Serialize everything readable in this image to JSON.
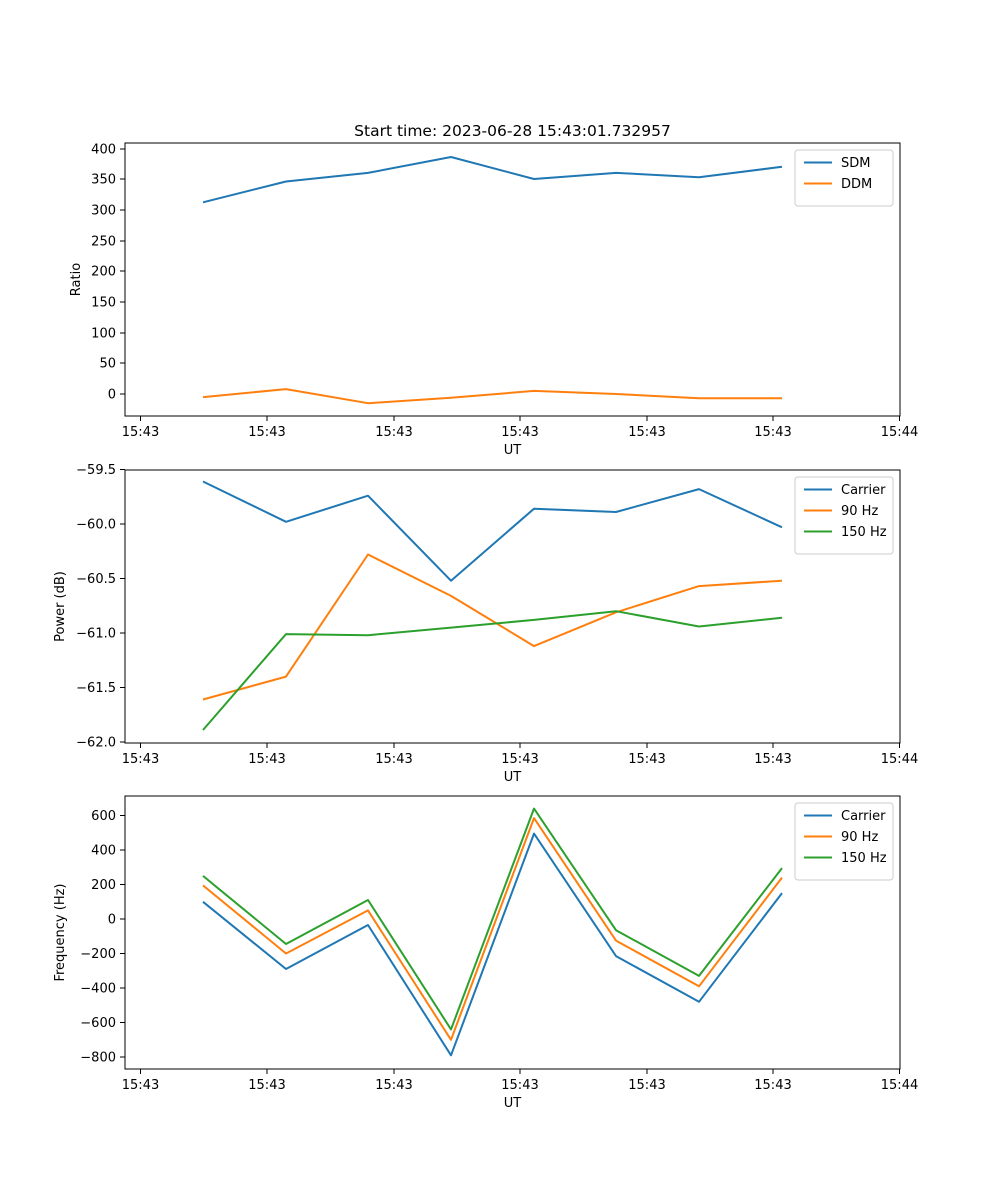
{
  "figure_title": "Start time: 2023-06-28 15:43:01.732957",
  "chart_data": [
    {
      "type": "line",
      "xlabel": "UT",
      "ylabel": "Ratio",
      "x": [
        1,
        2,
        3,
        4,
        5,
        6,
        7,
        8
      ],
      "x_ticks": [
        "15:43",
        "15:43",
        "15:43",
        "15:43",
        "15:43",
        "15:43",
        "15:44"
      ],
      "y_ticks": [
        "0",
        "50",
        "100",
        "150",
        "200",
        "250",
        "300",
        "350",
        "400"
      ],
      "ylim": [
        -36,
        405
      ],
      "grid": false,
      "legend_position": "top-right",
      "series": [
        {
          "name": "SDM",
          "color": "#1f77b4",
          "values": [
            313,
            347,
            361,
            387,
            351,
            361,
            354,
            371
          ]
        },
        {
          "name": "DDM",
          "color": "#ff7f0e",
          "values": [
            -5,
            8,
            -15,
            -6,
            5,
            0,
            -7,
            -7
          ]
        }
      ]
    },
    {
      "type": "line",
      "xlabel": "UT",
      "ylabel": "Power (dB)",
      "x": [
        1,
        2,
        3,
        4,
        5,
        6,
        7,
        8
      ],
      "x_ticks": [
        "15:43",
        "15:43",
        "15:43",
        "15:43",
        "15:43",
        "15:43",
        "15:44"
      ],
      "y_ticks": [
        "−62.0",
        "−61.5",
        "−61.0",
        "−60.5",
        "−60.0",
        "−59.5"
      ],
      "ylim": [
        -62.0,
        -59.5
      ],
      "grid": false,
      "legend_position": "top-right",
      "series": [
        {
          "name": "Carrier",
          "color": "#1f77b4",
          "values": [
            -59.61,
            -59.98,
            -59.74,
            -60.52,
            -59.86,
            -59.89,
            -59.68,
            -60.03
          ]
        },
        {
          "name": "90 Hz",
          "color": "#ff7f0e",
          "values": [
            -61.61,
            -61.4,
            -60.28,
            -60.66,
            -61.12,
            -60.81,
            -60.57,
            -60.52
          ]
        },
        {
          "name": "150 Hz",
          "color": "#2ca02c",
          "values": [
            -61.89,
            -61.01,
            -61.02,
            -60.95,
            -60.88,
            -60.8,
            -60.94,
            -60.86
          ]
        }
      ]
    },
    {
      "type": "line",
      "xlabel": "UT",
      "ylabel": "Frequency (Hz)",
      "x": [
        1,
        2,
        3,
        4,
        5,
        6,
        7,
        8
      ],
      "x_ticks": [
        "15:43",
        "15:43",
        "15:43",
        "15:43",
        "15:43",
        "15:43",
        "15:44"
      ],
      "y_ticks": [
        "−800",
        "−600",
        "−400",
        "−200",
        "0",
        "200",
        "400",
        "600"
      ],
      "ylim": [
        -862,
        712
      ],
      "grid": false,
      "legend_position": "top-right",
      "series": [
        {
          "name": "Carrier",
          "color": "#1f77b4",
          "values": [
            100,
            -290,
            -35,
            -790,
            495,
            -215,
            -480,
            150
          ]
        },
        {
          "name": "90 Hz",
          "color": "#ff7f0e",
          "values": [
            195,
            -200,
            50,
            -700,
            585,
            -125,
            -390,
            240
          ]
        },
        {
          "name": "150 Hz",
          "color": "#2ca02c",
          "values": [
            250,
            -145,
            110,
            -640,
            640,
            -65,
            -330,
            295
          ]
        }
      ]
    }
  ]
}
